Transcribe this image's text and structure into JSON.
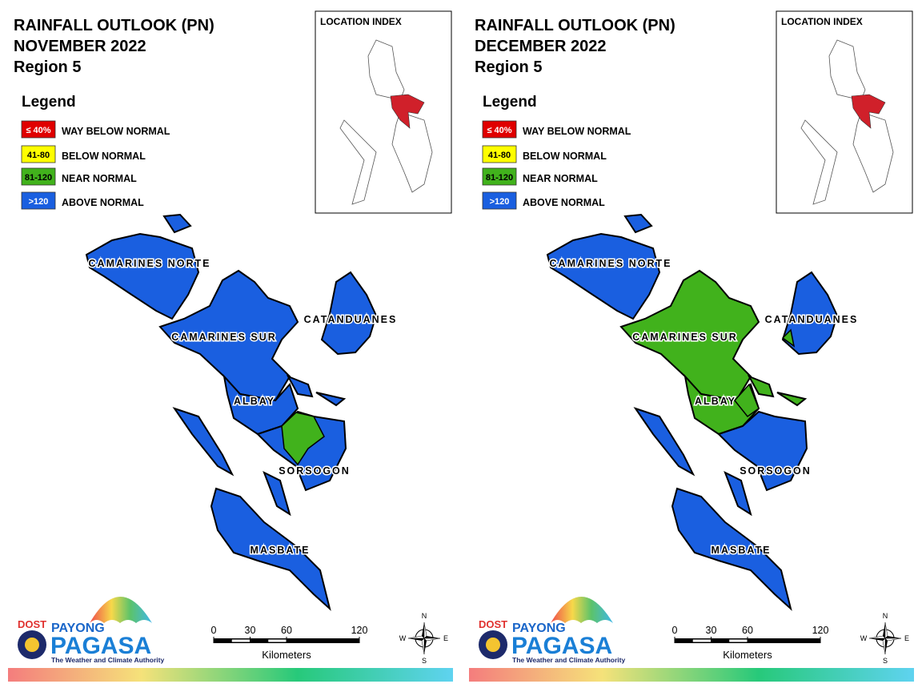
{
  "panels": [
    {
      "title": [
        "RAINFALL OUTLOOK (PN)",
        "NOVEMBER 2022",
        "Region 5"
      ],
      "legend": {
        "title": "Legend",
        "items": [
          {
            "swatch": "≤ 40%",
            "label": "WAY BELOW NORMAL",
            "color": "#e00000"
          },
          {
            "swatch": "41-80",
            "label": "BELOW NORMAL",
            "color": "#ffff00"
          },
          {
            "swatch": "81-120",
            "label": "NEAR NORMAL",
            "color": "#41b21c"
          },
          {
            "swatch": ">120",
            "label": "ABOVE NORMAL",
            "color": "#1a5fe0"
          }
        ]
      },
      "location_index": "LOCATION INDEX",
      "provinces": [
        {
          "name": "CAMARINES NORTE",
          "color": "#1a5fe0"
        },
        {
          "name": "CAMARINES SUR",
          "color": "#1a5fe0"
        },
        {
          "name": "CATANDUANES",
          "color": "#1a5fe0"
        },
        {
          "name": "ALBAY",
          "color": "#1a5fe0"
        },
        {
          "name": "SORSOGON",
          "color": "#1a5fe0"
        },
        {
          "name": "MASBATE",
          "color": "#1a5fe0"
        }
      ],
      "scale": {
        "ticks": [
          0,
          30,
          60,
          120
        ],
        "unit": "Kilometers"
      },
      "compass": [
        "N",
        "E",
        "S",
        "W"
      ],
      "logo": {
        "dost": "DOST",
        "payong": "PAYONG",
        "pagasa": "PAGASA",
        "tagline": "The Weather and Climate Authority"
      }
    },
    {
      "title": [
        "RAINFALL OUTLOOK (PN)",
        "DECEMBER 2022",
        "Region 5"
      ],
      "legend": {
        "title": "Legend",
        "items": [
          {
            "swatch": "≤ 40%",
            "label": "WAY BELOW NORMAL",
            "color": "#e00000"
          },
          {
            "swatch": "41-80",
            "label": "BELOW NORMAL",
            "color": "#ffff00"
          },
          {
            "swatch": "81-120",
            "label": "NEAR NORMAL",
            "color": "#41b21c"
          },
          {
            "swatch": ">120",
            "label": "ABOVE NORMAL",
            "color": "#1a5fe0"
          }
        ]
      },
      "location_index": "LOCATION INDEX",
      "provinces": [
        {
          "name": "CAMARINES NORTE",
          "color": "#1a5fe0"
        },
        {
          "name": "CAMARINES SUR",
          "color": "#41b21c"
        },
        {
          "name": "CATANDUANES",
          "color": "#1a5fe0"
        },
        {
          "name": "ALBAY",
          "color": "#41b21c"
        },
        {
          "name": "SORSOGON",
          "color": "#1a5fe0"
        },
        {
          "name": "MASBATE",
          "color": "#1a5fe0"
        }
      ],
      "scale": {
        "ticks": [
          0,
          30,
          60,
          120
        ],
        "unit": "Kilometers"
      },
      "compass": [
        "N",
        "E",
        "S",
        "W"
      ],
      "logo": {
        "dost": "DOST",
        "payong": "PAYONG",
        "pagasa": "PAGASA",
        "tagline": "The Weather and Climate Authority"
      }
    }
  ]
}
